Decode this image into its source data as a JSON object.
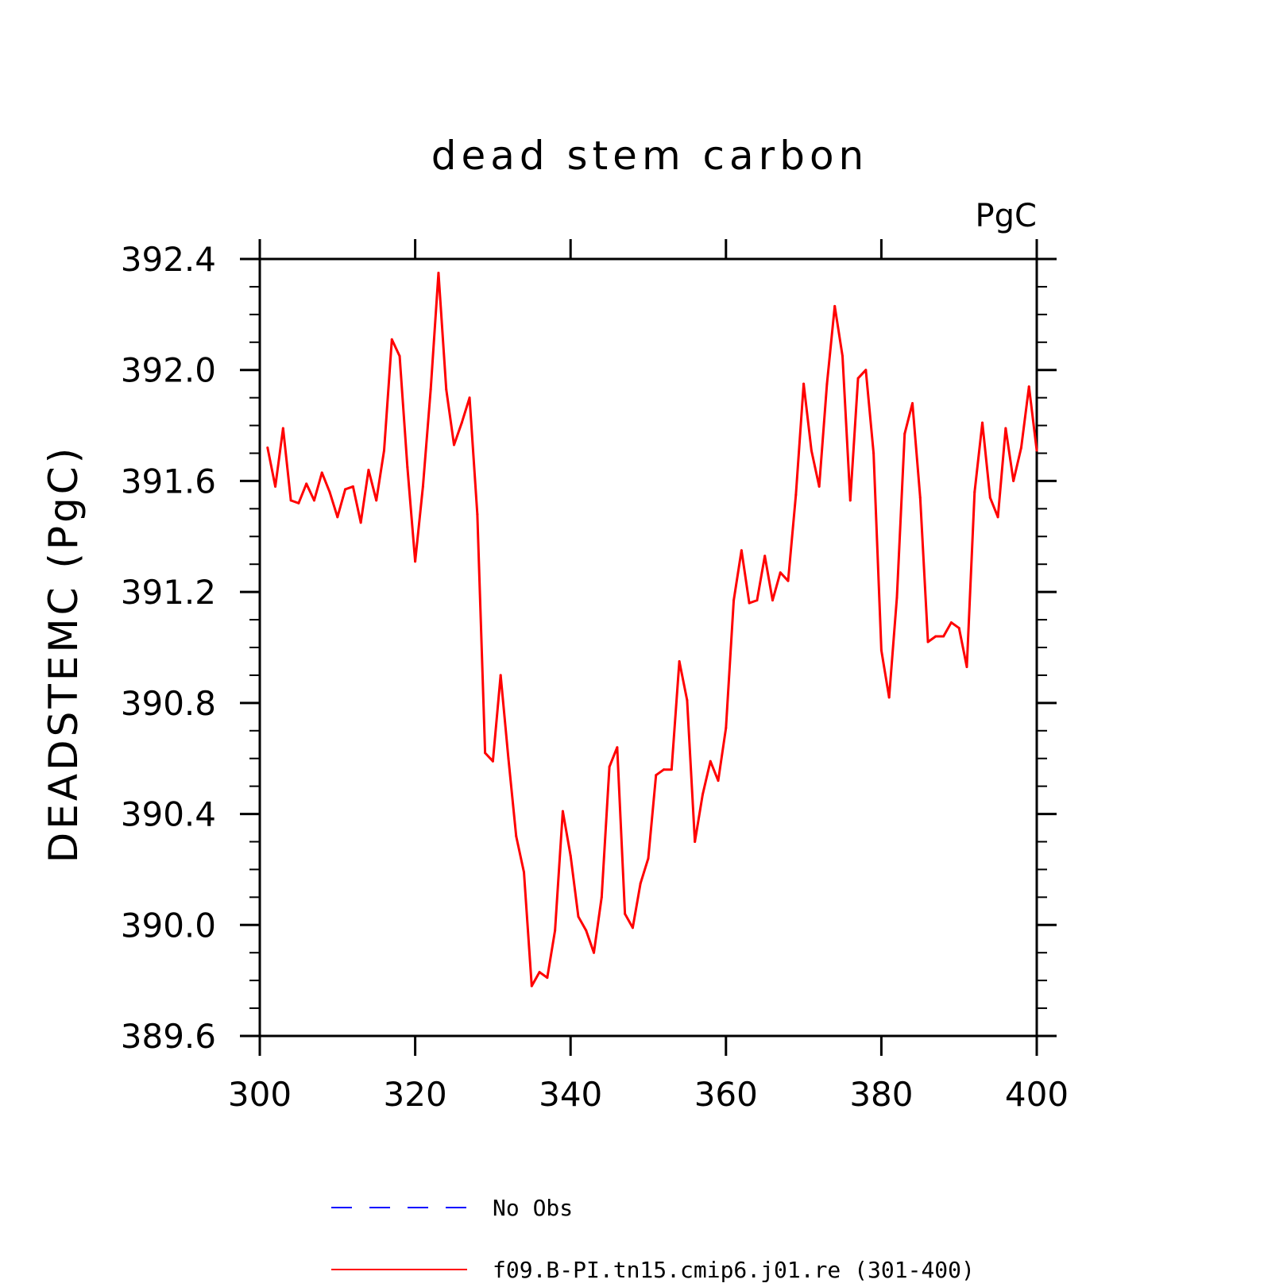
{
  "chart_data": {
    "type": "line",
    "title": "dead stem carbon",
    "unit_label": "PgC",
    "xlabel": "",
    "ylabel": "DEADSTEMC  (PgC)",
    "xlim": [
      300,
      400
    ],
    "ylim": [
      389.6,
      392.4
    ],
    "xticks": [
      300,
      320,
      340,
      360,
      380,
      400
    ],
    "xtick_labels": [
      "300",
      "320",
      "340",
      "360",
      "380",
      "400"
    ],
    "yticks": [
      389.6,
      390.0,
      390.4,
      390.8,
      391.2,
      391.6,
      392.0,
      392.4
    ],
    "ytick_labels": [
      "389.6",
      "390.0",
      "390.4",
      "390.8",
      "391.2",
      "391.6",
      "392.0",
      "392.4"
    ],
    "grid": false,
    "legend_position": "bottom",
    "legend": [
      {
        "label": "No Obs",
        "color": "#0000ff",
        "style": "dashed"
      },
      {
        "label": "f09.B-PI.tn15.cmip6.j01.re (301-400)",
        "color": "#ff0000",
        "style": "solid"
      }
    ],
    "series": [
      {
        "name": "f09.B-PI.tn15.cmip6.j01.re (301-400)",
        "color": "#ff0000",
        "x": [
          301,
          302,
          303,
          304,
          305,
          306,
          307,
          308,
          309,
          310,
          311,
          312,
          313,
          314,
          315,
          316,
          317,
          318,
          319,
          320,
          321,
          322,
          323,
          324,
          325,
          326,
          327,
          328,
          329,
          330,
          331,
          332,
          333,
          334,
          335,
          336,
          337,
          338,
          339,
          340,
          341,
          342,
          343,
          344,
          345,
          346,
          347,
          348,
          349,
          350,
          351,
          352,
          353,
          354,
          355,
          356,
          357,
          358,
          359,
          360,
          361,
          362,
          363,
          364,
          365,
          366,
          367,
          368,
          369,
          370,
          371,
          372,
          373,
          374,
          375,
          376,
          377,
          378,
          379,
          380,
          381,
          382,
          383,
          384,
          385,
          386,
          387,
          388,
          389,
          390,
          391,
          392,
          393,
          394,
          395,
          396,
          397,
          398,
          399,
          400
        ],
        "values": [
          391.72,
          391.58,
          391.79,
          391.53,
          391.52,
          391.59,
          391.53,
          391.63,
          391.56,
          391.47,
          391.57,
          391.58,
          391.45,
          391.64,
          391.53,
          391.71,
          392.11,
          392.05,
          391.65,
          391.31,
          391.58,
          391.93,
          392.35,
          391.93,
          391.73,
          391.81,
          391.9,
          391.48,
          390.62,
          390.59,
          390.9,
          390.6,
          390.32,
          390.19,
          389.78,
          389.83,
          389.81,
          389.98,
          390.41,
          390.25,
          390.03,
          389.98,
          389.9,
          390.1,
          390.57,
          390.64,
          390.04,
          389.99,
          390.15,
          390.24,
          390.54,
          390.56,
          390.56,
          390.95,
          390.81,
          390.3,
          390.47,
          390.59,
          390.52,
          390.71,
          391.17,
          391.35,
          391.16,
          391.17,
          391.33,
          391.17,
          391.27,
          391.24,
          391.55,
          391.95,
          391.71,
          391.58,
          391.95,
          392.23,
          392.05,
          391.53,
          391.97,
          392.0,
          391.7,
          390.99,
          390.82,
          391.18,
          391.77,
          391.88,
          391.54,
          391.02,
          391.04,
          391.04,
          391.09,
          391.07,
          390.93,
          391.56,
          391.81,
          391.54,
          391.47,
          391.79,
          391.6,
          391.72,
          391.94,
          391.71
        ]
      }
    ]
  }
}
